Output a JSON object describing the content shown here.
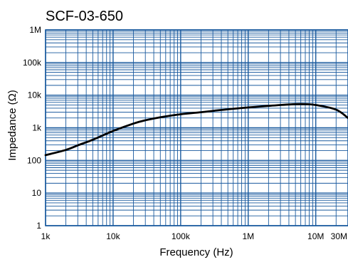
{
  "chart_data": {
    "type": "line",
    "title": "SCF-03-650",
    "xlabel": "Frequency (Hz)",
    "ylabel": "Impedance (Ω)",
    "x_scale": "log",
    "y_scale": "log",
    "xlim": [
      1000,
      30000000
    ],
    "ylim": [
      1,
      1000000
    ],
    "grid": true,
    "x_ticks": [
      {
        "value": 1000,
        "label": "1k"
      },
      {
        "value": 10000,
        "label": "10k"
      },
      {
        "value": 100000,
        "label": "100k"
      },
      {
        "value": 1000000,
        "label": "1M"
      },
      {
        "value": 10000000,
        "label": "10M"
      },
      {
        "value": 30000000,
        "label": "30M"
      }
    ],
    "y_ticks": [
      {
        "value": 1,
        "label": "1"
      },
      {
        "value": 10,
        "label": "10"
      },
      {
        "value": 100,
        "label": "100"
      },
      {
        "value": 1000,
        "label": "1k"
      },
      {
        "value": 10000,
        "label": "10k"
      },
      {
        "value": 100000,
        "label": "100k"
      },
      {
        "value": 1000000,
        "label": "1M"
      }
    ],
    "colors": {
      "grid": "#1a5a9e",
      "line": "#000000"
    },
    "series": [
      {
        "x": [
          1000,
          2000,
          3000,
          5000,
          10000,
          20000,
          30000,
          50000,
          100000,
          200000,
          300000,
          500000,
          1000000,
          2000000,
          3000000,
          5000000,
          7000000,
          10000000,
          20000000,
          30000000
        ],
        "y": [
          145,
          210,
          290,
          430,
          800,
          1350,
          1700,
          2100,
          2600,
          3000,
          3300,
          3700,
          4200,
          4700,
          5000,
          5300,
          5300,
          5000,
          3600,
          2000
        ]
      }
    ]
  }
}
